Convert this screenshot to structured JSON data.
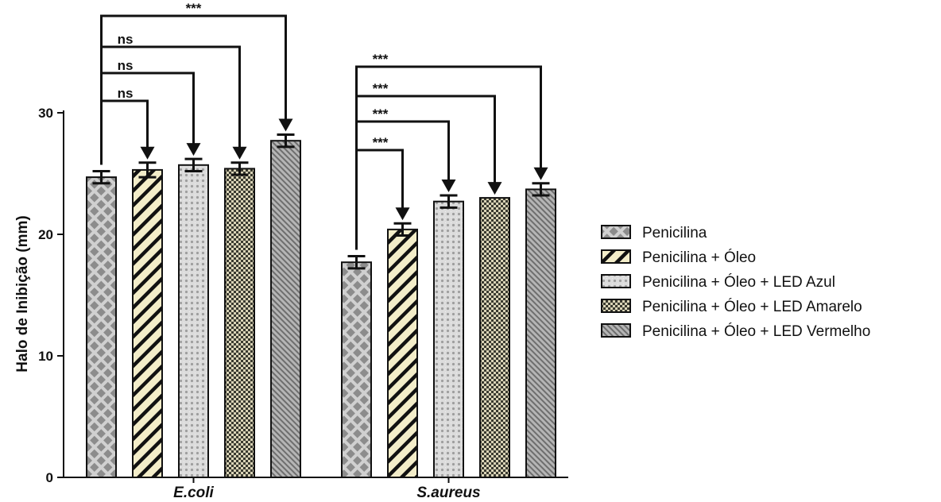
{
  "chart_data": {
    "type": "bar",
    "ylabel": "Halo de Inibição (mm)",
    "ylim": [
      0,
      30
    ],
    "yticks": [
      0,
      10,
      20,
      30
    ],
    "grid": false,
    "legend_position": "right",
    "categories": [
      "E.coli",
      "S.aureus"
    ],
    "series": [
      {
        "name": "Penicilina",
        "values": [
          24.7,
          17.7
        ],
        "errors": [
          0.5,
          0.5
        ],
        "pattern": "cross-hatch",
        "color": "#8a8a8a"
      },
      {
        "name": "Penicilina + Óleo",
        "values": [
          25.3,
          20.4
        ],
        "errors": [
          0.6,
          0.5
        ],
        "pattern": "diagonal-stripes",
        "color": "#f2ecc8"
      },
      {
        "name": "Penicilina + Óleo + LED Azul",
        "values": [
          25.7,
          22.7
        ],
        "errors": [
          0.5,
          0.5
        ],
        "pattern": "dots-light",
        "color": "#d4d4d4"
      },
      {
        "name": "Penicilina + Óleo + LED Amarelo",
        "values": [
          25.4,
          23.0
        ],
        "errors": [
          0.5,
          0.0
        ],
        "pattern": "checker",
        "color": "#c8c2a8"
      },
      {
        "name": "Penicilina + Óleo + LED Vermelho",
        "values": [
          27.7,
          23.7
        ],
        "errors": [
          0.5,
          0.5
        ],
        "pattern": "fine-diagonal",
        "color": "#9a9a9a"
      }
    ],
    "comparisons": [
      {
        "group": 0,
        "from": 0,
        "to": 1,
        "label": "ns"
      },
      {
        "group": 0,
        "from": 0,
        "to": 2,
        "label": "ns"
      },
      {
        "group": 0,
        "from": 0,
        "to": 3,
        "label": "ns"
      },
      {
        "group": 0,
        "from": 0,
        "to": 4,
        "label": "***"
      },
      {
        "group": 1,
        "from": 0,
        "to": 1,
        "label": "***"
      },
      {
        "group": 1,
        "from": 0,
        "to": 2,
        "label": "***"
      },
      {
        "group": 1,
        "from": 0,
        "to": 3,
        "label": "***"
      },
      {
        "group": 1,
        "from": 0,
        "to": 4,
        "label": "***"
      }
    ]
  }
}
